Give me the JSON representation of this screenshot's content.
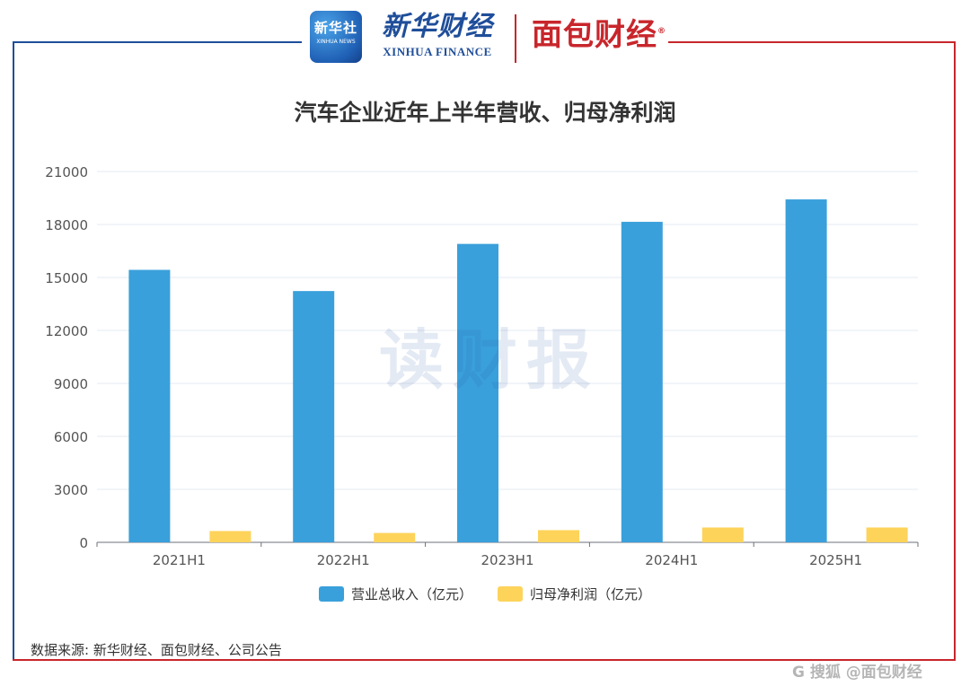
{
  "header": {
    "xinhua_badge_cn": "新华社",
    "xinhua_badge_en": "XINHUA NEWS",
    "xinhua_finance_cn": "新华财经",
    "xinhua_finance_en": "XINHUA FINANCE",
    "mianbao_logo": "面包财经",
    "registered_mark": "®"
  },
  "watermark": "读财报",
  "source": "数据来源: 新华财经、面包财经、公司公告",
  "footer_watermark": "G 搜狐 @面包财经",
  "colors": {
    "revenue": "#3aa0db",
    "net_profit": "#fdd35a",
    "frame_blue": "#1f4e9a",
    "frame_red": "#c8262c"
  },
  "chart_data": {
    "type": "bar",
    "title": "汽车企业近年上半年营收、归母净利润",
    "categories": [
      "2021H1",
      "2022H1",
      "2023H1",
      "2024H1",
      "2025H1"
    ],
    "series": [
      {
        "name": "营业总收入（亿元）",
        "values": [
          15430,
          14230,
          16900,
          18150,
          19420
        ]
      },
      {
        "name": "归母净利润（亿元）",
        "values": [
          640,
          530,
          690,
          840,
          840
        ]
      }
    ],
    "yticks": [
      0,
      3000,
      6000,
      9000,
      12000,
      15000,
      18000,
      21000
    ],
    "ylim": [
      0,
      21000
    ],
    "grid": true,
    "legend": "bottom"
  }
}
